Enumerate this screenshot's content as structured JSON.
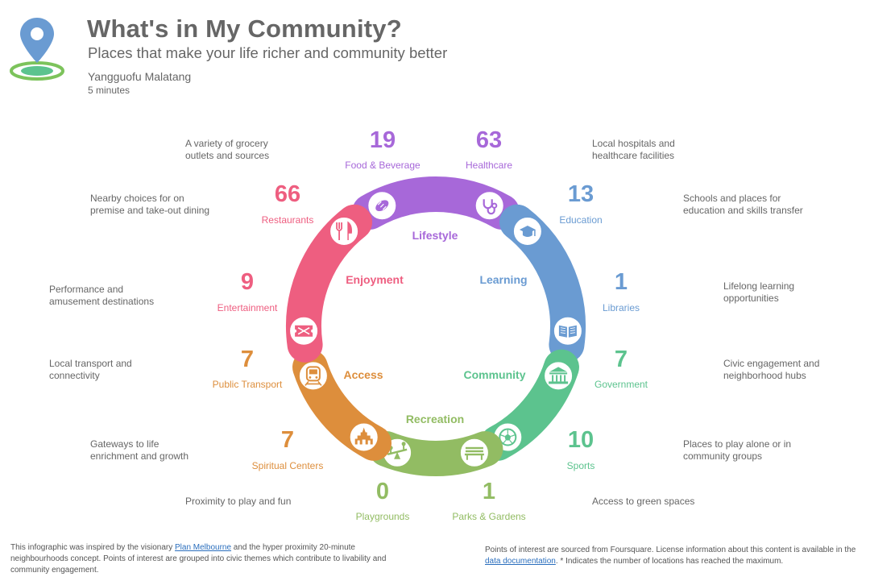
{
  "header": {
    "title": "What's in My Community?",
    "subtitle": "Places that make your life richer and community better",
    "place": "Yangguofu Malatang",
    "duration": "5 minutes"
  },
  "colors": {
    "lifestyle": "#A768D9",
    "learning": "#6A9BD2",
    "community": "#5CC38E",
    "recreation": "#92BC63",
    "access": "#DD8E3C",
    "enjoyment": "#EE5E80"
  },
  "themes": {
    "lifestyle": "Lifestyle",
    "learning": "Learning",
    "community": "Community",
    "recreation": "Recreation",
    "access": "Access",
    "enjoyment": "Enjoyment"
  },
  "categories": {
    "food_beverage": {
      "count": "19",
      "label": "Food & Beverage",
      "description": "A variety of grocery outlets and sources",
      "icon": "bread-icon"
    },
    "healthcare": {
      "count": "63",
      "label": "Healthcare",
      "description": "Local hospitals and healthcare facilities",
      "icon": "stethoscope-icon"
    },
    "education": {
      "count": "13",
      "label": "Education",
      "description": "Schools and places for education and skills transfer",
      "icon": "graduation-cap-icon"
    },
    "libraries": {
      "count": "1",
      "label": "Libraries",
      "description": "Lifelong learning opportunities",
      "icon": "book-icon"
    },
    "government": {
      "count": "7",
      "label": "Government",
      "description": "Civic engagement and neighborhood hubs",
      "icon": "government-building-icon"
    },
    "sports": {
      "count": "10",
      "label": "Sports",
      "description": "Places to play alone or in community groups",
      "icon": "soccer-ball-icon"
    },
    "parks": {
      "count": "1",
      "label": "Parks & Gardens",
      "description": "Access to green spaces",
      "icon": "park-bench-icon"
    },
    "playgrounds": {
      "count": "0",
      "label": "Playgrounds",
      "description": "Proximity to play and fun",
      "icon": "seesaw-icon"
    },
    "spiritual": {
      "count": "7",
      "label": "Spiritual Centers",
      "description": "Gateways to life enrichment and growth",
      "icon": "temple-icon"
    },
    "transport": {
      "count": "7",
      "label": "Public Transport",
      "description": "Local transport and connectivity",
      "icon": "train-icon"
    },
    "entertainment": {
      "count": "9",
      "label": "Entertainment",
      "description": "Performance and amusement destinations",
      "icon": "ticket-icon"
    },
    "restaurants": {
      "count": "66",
      "label": "Restaurants",
      "description": "Nearby choices for on premise and take-out dining",
      "icon": "fork-knife-icon"
    }
  },
  "footer": {
    "left_prefix": "This infographic was inspired by the visionary ",
    "left_link": "Plan Melbourne",
    "left_suffix": " and the hyper proximity 20-minute neighbourhoods concept. Points of interest are grouped into civic themes which contribute to livability and community engagement.",
    "right_prefix": "Points of interest are sourced from Foursquare. License information about this content is available in the ",
    "right_link": "data documentation",
    "right_suffix": ". * Indicates the number of locations has reached the maximum."
  }
}
